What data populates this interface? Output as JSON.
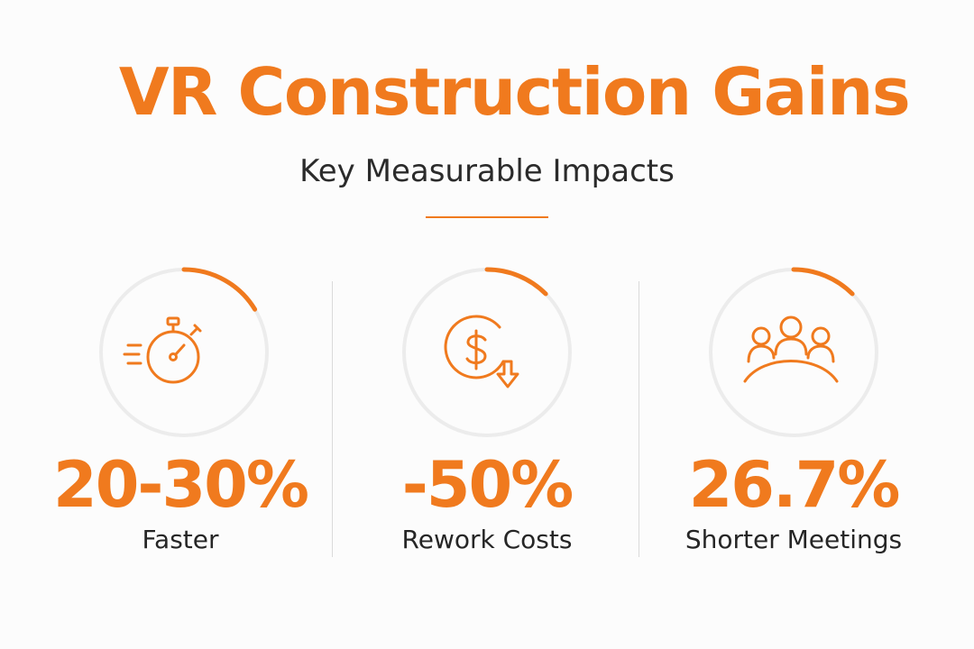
{
  "header": {
    "title": "VR Construction Gains",
    "subtitle": "Key Measurable Impacts"
  },
  "theme": {
    "accent": "#f07a1e",
    "track": "#ececec",
    "text": "#262626"
  },
  "metrics": [
    {
      "value": "20-30%",
      "label": "Faster",
      "icon": "stopwatch-icon"
    },
    {
      "value": "-50%",
      "label": "Rework Costs",
      "icon": "dollar-down-icon"
    },
    {
      "value": "26.7%",
      "label": "Shorter Meetings",
      "icon": "people-group-icon"
    }
  ]
}
